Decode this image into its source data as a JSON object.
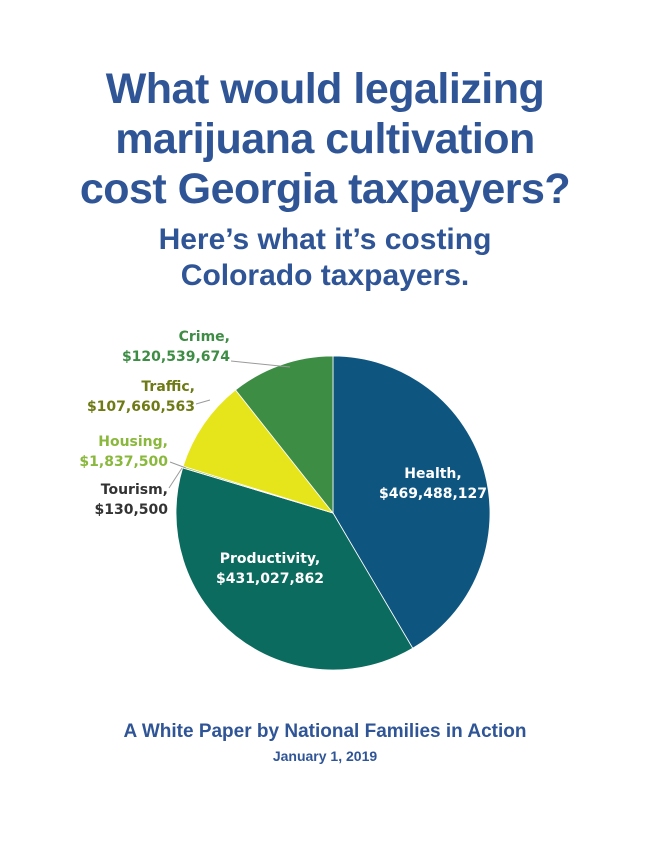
{
  "title": {
    "line1": "What would legalizing",
    "line2": "marijuana cultivation",
    "line3": "cost Georgia taxpayers?"
  },
  "subtitle": {
    "line1": "Here’s what it’s costing",
    "line2": "Colorado taxpayers."
  },
  "chart_data": {
    "type": "pie",
    "title": "",
    "slices": [
      {
        "name": "Health",
        "label": "Health,",
        "value_label": "$469,488,127",
        "value": 469488127,
        "color": "#0e5680"
      },
      {
        "name": "Productivity",
        "label": "Productivity,",
        "value_label": "$431,027,862",
        "value": 431027862,
        "color": "#0c6b5f"
      },
      {
        "name": "Tourism",
        "label": "Tourism,",
        "value_label": "$130,500",
        "value": 130500,
        "color": "#2e6f6a"
      },
      {
        "name": "Housing",
        "label": "Housing,",
        "value_label": "$1,837,500",
        "value": 1837500,
        "color": "#8fb84a"
      },
      {
        "name": "Traffic",
        "label": "Traffic,",
        "value_label": "$107,660,563",
        "value": 107660563,
        "color": "#e6e41a"
      },
      {
        "name": "Crime",
        "label": "Crime,",
        "value_label": "$120,539,674",
        "value": 120539674,
        "color": "#3d8d45"
      }
    ],
    "label_colors": {
      "Health": "#ffffff",
      "Productivity": "#ffffff",
      "Tourism": "#333333",
      "Housing": "#8ab83c",
      "Traffic": "#6e7a14",
      "Crime": "#3d8d45"
    }
  },
  "footer": {
    "line1": "A White Paper by National Families in Action",
    "line2": "January 1, 2019"
  }
}
